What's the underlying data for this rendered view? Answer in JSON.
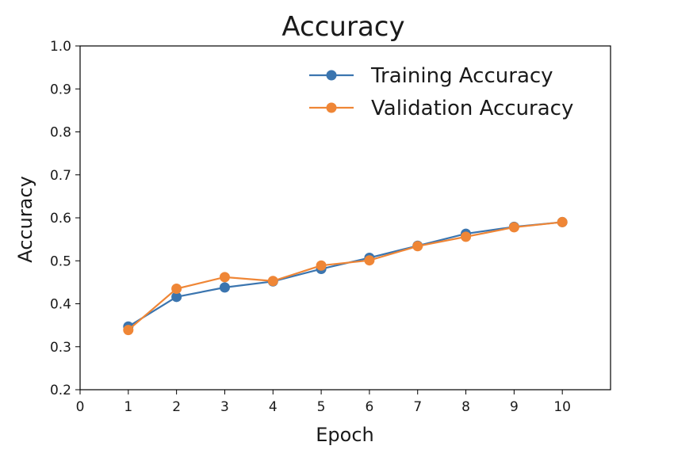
{
  "chart_data": {
    "type": "line",
    "title": "Accuracy",
    "xlabel": "Epoch",
    "ylabel": "Accuracy",
    "xlim": [
      0,
      11
    ],
    "ylim": [
      0.2,
      1.0
    ],
    "xticks": [
      0,
      1,
      2,
      3,
      4,
      5,
      6,
      7,
      8,
      9,
      10
    ],
    "yticks": [
      0.2,
      0.3,
      0.4,
      0.5,
      0.6,
      0.7,
      0.8,
      0.9,
      1.0
    ],
    "xtick_labels": [
      "0",
      "1",
      "2",
      "3",
      "4",
      "5",
      "6",
      "7",
      "8",
      "9",
      "10"
    ],
    "ytick_labels": [
      "0.2",
      "0.3",
      "0.4",
      "0.5",
      "0.6",
      "0.7",
      "0.8",
      "0.9",
      "1.0"
    ],
    "grid": false,
    "legend_position": "top-right",
    "x": [
      1,
      2,
      3,
      4,
      5,
      6,
      7,
      8,
      9,
      10
    ],
    "series": [
      {
        "name": "Training Accuracy",
        "color": "#3b75af",
        "marker": "circle",
        "values": [
          0.347,
          0.416,
          0.438,
          0.452,
          0.481,
          0.507,
          0.535,
          0.563,
          0.579,
          0.59
        ]
      },
      {
        "name": "Validation Accuracy",
        "color": "#ef8636",
        "marker": "circle",
        "values": [
          0.339,
          0.435,
          0.462,
          0.453,
          0.489,
          0.501,
          0.534,
          0.556,
          0.578,
          0.59
        ]
      }
    ]
  }
}
